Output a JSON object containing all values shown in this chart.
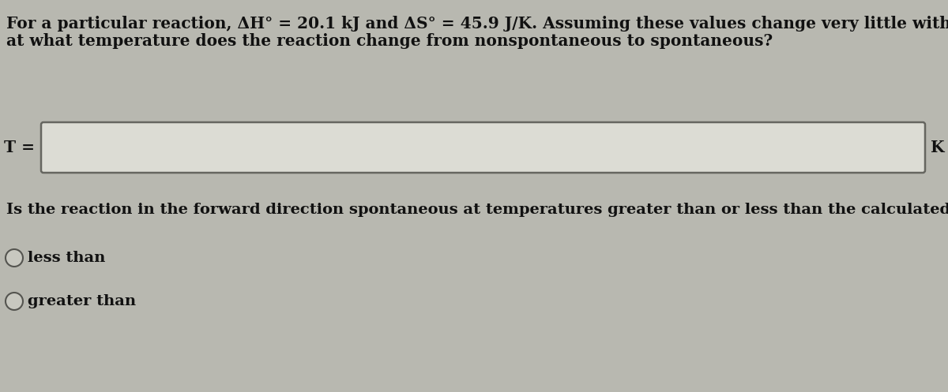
{
  "background_color": "#b8b8b0",
  "text_color": "#111111",
  "title_line1": "For a particular reaction, ΔH° = 20.1 kJ and ΔS° = 45.9 J/K. Assuming these values change very little with temperature,",
  "title_line2": "at what temperature does the reaction change from nonspontaneous to spontaneous?",
  "input_label": "T =",
  "input_unit": "K",
  "question_text": "Is the reaction in the forward direction spontaneous at temperatures greater than or less than the calculated temperature?",
  "option1": "less than",
  "option2": "greater than",
  "font_size_title": 14.5,
  "font_size_body": 14.0,
  "input_box_facecolor": "#dcdcd4",
  "input_box_edgecolor": "#666660",
  "radio_facecolor": "#c8c8c0",
  "radio_edgecolor": "#555550"
}
